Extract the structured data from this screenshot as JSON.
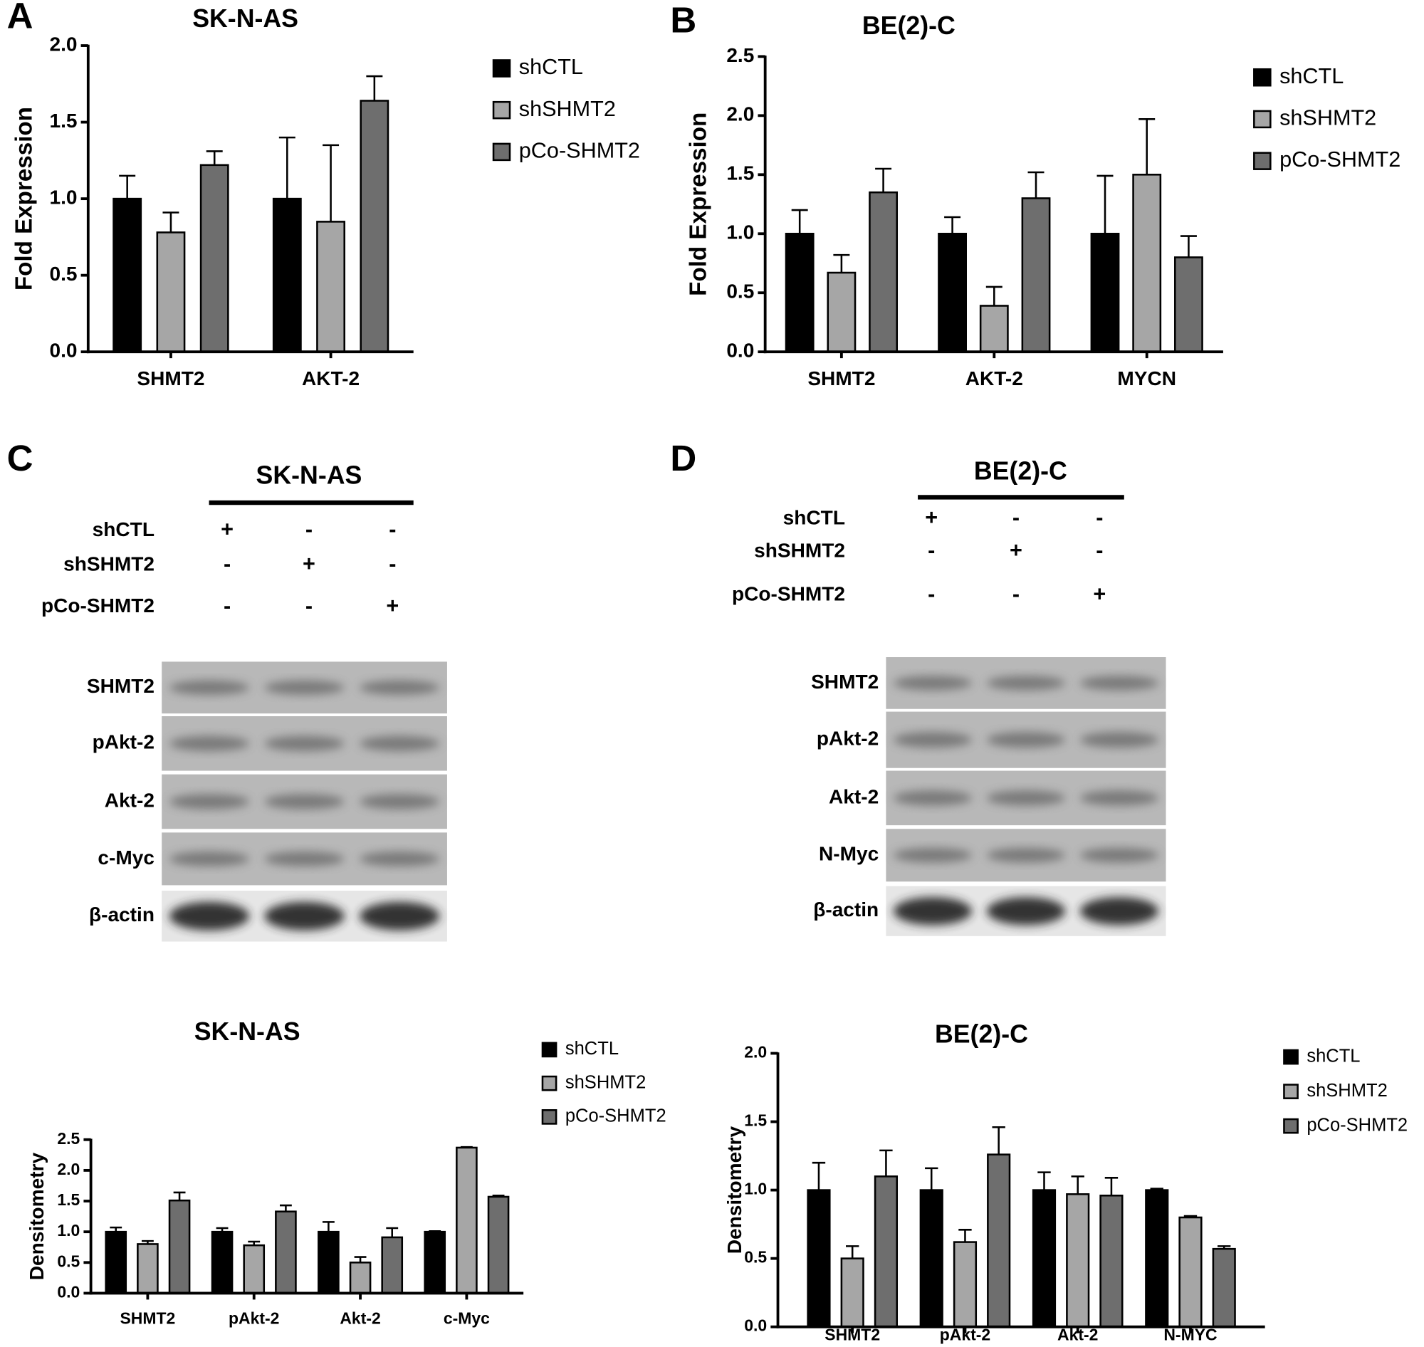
{
  "panels": [
    "A",
    "B",
    "C",
    "D"
  ],
  "blots": [
    {
      "title": "SK-N-AS",
      "conditions": [
        {
          "label": "shCTL",
          "signs": [
            "+",
            "-",
            "-"
          ]
        },
        {
          "label": "shSHMT2",
          "signs": [
            "-",
            "+",
            "-"
          ]
        },
        {
          "label": "pCo-SHMT2",
          "signs": [
            "-",
            "-",
            "+"
          ]
        }
      ],
      "bands": [
        "SHMT2",
        "pAkt-2",
        "Akt-2",
        "c-Myc",
        "β-actin"
      ]
    },
    {
      "title": "BE(2)-C",
      "conditions": [
        {
          "label": "shCTL",
          "signs": [
            "+",
            "-",
            "-"
          ]
        },
        {
          "label": "shSHMT2",
          "signs": [
            "-",
            "+",
            "-"
          ]
        },
        {
          "label": "pCo-SHMT2",
          "signs": [
            "-",
            "-",
            "+"
          ]
        }
      ],
      "bands": [
        "SHMT2",
        "pAkt-2",
        "Akt-2",
        "N-Myc",
        "β-actin"
      ]
    }
  ],
  "chart_data": [
    {
      "type": "bar",
      "title": "SK-N-AS",
      "y_label": "Fold Expression",
      "categories": [
        "SHMT2",
        "AKT-2"
      ],
      "series": [
        {
          "name": "shCTL",
          "color": "#000000",
          "values": [
            1.0,
            1.0
          ],
          "errors": [
            0.15,
            0.4
          ]
        },
        {
          "name": "shSHMT2",
          "color": "#a6a6a6",
          "values": [
            0.78,
            0.85
          ],
          "errors": [
            0.13,
            0.5
          ]
        },
        {
          "name": "pCo-SHMT2",
          "color": "#6e6e6e",
          "values": [
            1.22,
            1.64
          ],
          "errors": [
            0.09,
            0.16
          ]
        }
      ],
      "ylim": [
        0,
        2
      ],
      "yticks": [
        {
          "value": 0,
          "label": "0.0"
        },
        0.5,
        {
          "value": 1,
          "label": "1.0"
        },
        1.5,
        {
          "value": 2,
          "label": "2.0"
        }
      ],
      "error_bars": "up",
      "legend": "right"
    },
    {
      "type": "bar",
      "title": "BE(2)-C",
      "y_label": "Fold Expression",
      "categories": [
        "SHMT2",
        "AKT-2",
        "MYCN"
      ],
      "series": [
        {
          "name": "shCTL",
          "color": "#000000",
          "values": [
            1.0,
            1.0,
            1.0
          ],
          "errors": [
            0.2,
            0.14,
            0.49
          ]
        },
        {
          "name": "shSHMT2",
          "color": "#a6a6a6",
          "values": [
            0.67,
            0.39,
            1.5
          ],
          "errors": [
            0.15,
            0.16,
            0.47
          ]
        },
        {
          "name": "pCo-SHMT2",
          "color": "#6e6e6e",
          "values": [
            1.35,
            1.3,
            0.8
          ],
          "errors": [
            0.2,
            0.22,
            0.18
          ]
        }
      ],
      "ylim": [
        0,
        2.5
      ],
      "yticks": [
        {
          "value": 0,
          "label": "0.0"
        },
        0.5,
        {
          "value": 1,
          "label": "1.0"
        },
        1.5,
        {
          "value": 2,
          "label": "2.0"
        },
        2.5
      ],
      "error_bars": "up",
      "legend": "right"
    },
    {
      "type": "bar",
      "title": "SK-N-AS",
      "y_label": "Densitometry",
      "categories": [
        "SHMT2",
        "pAkt-2",
        "Akt-2",
        "c-Myc"
      ],
      "series": [
        {
          "name": "shCTL",
          "color": "#000000",
          "values": [
            1.0,
            1.0,
            1.0,
            1.0
          ],
          "errors": [
            0.07,
            0.06,
            0.16,
            0.01
          ]
        },
        {
          "name": "shSHMT2",
          "color": "#a6a6a6",
          "values": [
            0.8,
            0.78,
            0.5,
            2.37
          ],
          "errors": [
            0.05,
            0.06,
            0.09,
            0.01
          ]
        },
        {
          "name": "pCo-SHMT2",
          "color": "#6e6e6e",
          "values": [
            1.51,
            1.33,
            0.91,
            1.57
          ],
          "errors": [
            0.13,
            0.1,
            0.15,
            0.02
          ]
        }
      ],
      "ylim": [
        0,
        2.5
      ],
      "yticks": [
        {
          "value": 0,
          "label": "0.0"
        },
        0.5,
        {
          "value": 1,
          "label": "1.0"
        },
        1.5,
        {
          "value": 2,
          "label": "2.0"
        },
        2.5
      ],
      "error_bars": "up",
      "legend": "right"
    },
    {
      "type": "bar",
      "title": "BE(2)-C",
      "y_label": "Densitometry",
      "categories": [
        "SHMT2",
        "pAkt-2",
        "Akt-2",
        "N-MYC"
      ],
      "series": [
        {
          "name": "shCTL",
          "color": "#000000",
          "values": [
            1.0,
            1.0,
            1.0,
            1.0
          ],
          "errors": [
            0.2,
            0.16,
            0.13,
            0.01
          ]
        },
        {
          "name": "shSHMT2",
          "color": "#a6a6a6",
          "values": [
            0.5,
            0.62,
            0.97,
            0.8
          ],
          "errors": [
            0.09,
            0.09,
            0.13,
            0.01
          ]
        },
        {
          "name": "pCo-SHMT2",
          "color": "#6e6e6e",
          "values": [
            1.1,
            1.26,
            0.96,
            0.57
          ],
          "errors": [
            0.19,
            0.2,
            0.13,
            0.02
          ]
        }
      ],
      "ylim": [
        0,
        2
      ],
      "yticks": [
        {
          "value": 0,
          "label": "0.0"
        },
        0.5,
        {
          "value": 1,
          "label": "1.0"
        },
        1.5,
        {
          "value": 2,
          "label": "2.0"
        }
      ],
      "error_bars": "both",
      "legend": "right"
    }
  ]
}
